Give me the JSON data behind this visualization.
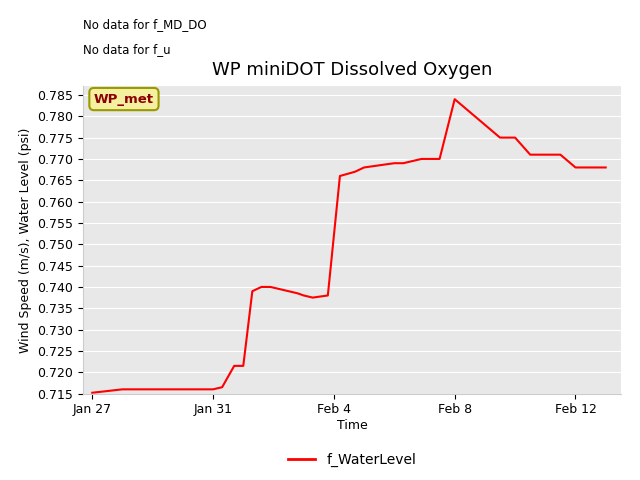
{
  "title": "WP miniDOT Dissolved Oxygen",
  "ylabel": "Wind Speed (m/s), Water Level (psi)",
  "xlabel": "Time",
  "no_data_text_1": "No data for f_MD_DO",
  "no_data_text_2": "No data for f_u",
  "legend_box_label": "WP_met",
  "legend_line_label": "f_WaterLevel",
  "line_color": "#ff0000",
  "plot_bg_color": "#e8e8e8",
  "fig_bg_color": "#ffffff",
  "ylim": [
    0.715,
    0.787
  ],
  "yticks": [
    0.715,
    0.72,
    0.725,
    0.73,
    0.735,
    0.74,
    0.745,
    0.75,
    0.755,
    0.76,
    0.765,
    0.77,
    0.775,
    0.78,
    0.785
  ],
  "x_days": [
    0,
    1,
    2,
    3,
    4,
    4.3,
    4.7,
    5.0,
    5.3,
    5.6,
    5.9,
    6.2,
    6.5,
    6.8,
    7.0,
    7.3,
    7.8,
    8.2,
    8.7,
    9.0,
    9.5,
    10.0,
    10.3,
    10.9,
    11.5,
    12.0,
    12.5,
    13.0,
    13.5,
    14.0,
    14.5,
    15.5,
    16.0,
    16.5,
    17.0
  ],
  "y_data": [
    0.7152,
    0.716,
    0.716,
    0.716,
    0.716,
    0.7165,
    0.7215,
    0.7215,
    0.739,
    0.74,
    0.74,
    0.7395,
    0.739,
    0.7385,
    0.738,
    0.7375,
    0.738,
    0.766,
    0.767,
    0.768,
    0.7685,
    0.769,
    0.769,
    0.77,
    0.77,
    0.784,
    0.781,
    0.778,
    0.775,
    0.775,
    0.771,
    0.771,
    0.768,
    0.768,
    0.768
  ],
  "xlim_days": [
    -0.3,
    17.5
  ],
  "xtick_days": [
    0,
    4,
    8,
    12,
    16
  ],
  "xtick_labels": [
    "Jan 27",
    "Jan 31",
    "Feb 4",
    "Feb 8",
    "Feb 12"
  ],
  "grid_color": "#ffffff",
  "title_fontsize": 13,
  "label_fontsize": 9,
  "tick_fontsize": 9,
  "legend_fontsize": 10
}
